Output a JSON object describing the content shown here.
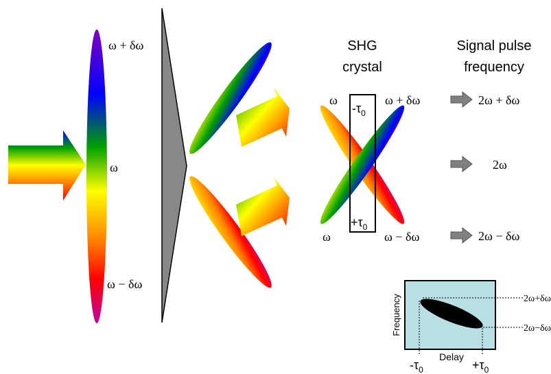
{
  "labels": {
    "input_top": "ω + δω",
    "input_mid": "ω",
    "input_bottom": "ω − δω",
    "shg_title_line1": "SHG",
    "shg_title_line2": "crystal",
    "signal_title_line1": "Signal pulse",
    "signal_title_line2": "frequency",
    "crystal_left_top": "ω",
    "crystal_left_bottom": "ω",
    "crystal_right_top": "ω + δω",
    "crystal_right_bottom": "ω − δω",
    "tau_minus_prefix": "-τ",
    "tau_minus_sub": "0",
    "tau_plus_prefix": "+τ",
    "tau_plus_sub": "0",
    "signal_top": "2ω + δω",
    "signal_mid": "2ω",
    "signal_bottom": "2ω − δω"
  },
  "inset": {
    "ylabel": "Frequency",
    "xlabel": "Delay",
    "right_top": "2ω+δω",
    "right_bottom": "2ω−δω",
    "tick_left_prefix": "-τ",
    "tick_left_sub": "0",
    "tick_right_prefix": "+τ",
    "tick_right_sub": "0",
    "background": "#b8dfe3"
  },
  "colors": {
    "prism": "#888888",
    "arrow_gray": "#808080",
    "spectrum": [
      "#ff0000",
      "#ff8800",
      "#ffff00",
      "#00aa00",
      "#0000ff",
      "#8800cc",
      "#cc00aa"
    ]
  }
}
